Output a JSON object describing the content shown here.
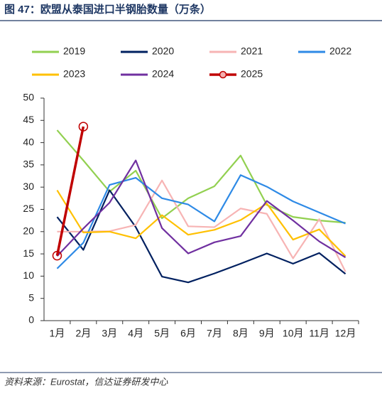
{
  "chart_data": {
    "type": "line",
    "title": "图 47：欧盟从泰国进口半钢胎数量（万条）",
    "source": "资料来源：Eurostat，信达证券研发中心",
    "categories": [
      "1月",
      "2月",
      "3月",
      "4月",
      "5月",
      "6月",
      "7月",
      "8月",
      "9月",
      "10月",
      "11月",
      "12月"
    ],
    "series": [
      {
        "name": "2019",
        "color": "#92d050",
        "values": [
          42.8,
          36,
          29,
          33.7,
          23,
          27.5,
          30.2,
          37.1,
          26,
          23.3,
          22.5,
          22
        ]
      },
      {
        "name": "2020",
        "color": "#002060",
        "values": [
          23.3,
          15.9,
          29.3,
          21,
          9.9,
          8.6,
          10.6,
          12.8,
          15.1,
          12.8,
          15.2,
          10.5
        ]
      },
      {
        "name": "2021",
        "color": "#f7b4b4",
        "values": [
          20,
          20,
          20.1,
          21.5,
          31.5,
          21.2,
          21,
          25.2,
          24,
          14,
          22.8,
          11
        ]
      },
      {
        "name": "2022",
        "color": "#2e8ae6",
        "values": [
          11.7,
          17.5,
          30.5,
          32.1,
          27.5,
          26.1,
          22.3,
          32.7,
          30.1,
          26.8,
          24.3,
          21.8
        ]
      },
      {
        "name": "2023",
        "color": "#ffc000",
        "values": [
          29.3,
          19.8,
          20,
          18.5,
          23.7,
          19.3,
          20.4,
          22.6,
          26.3,
          18.2,
          20.5,
          14.5
        ]
      },
      {
        "name": "2024",
        "color": "#7030a0",
        "values": [
          14.5,
          20.7,
          26.5,
          36,
          20.8,
          15.1,
          17.6,
          19,
          26.9,
          22.5,
          17.8,
          14.2
        ]
      },
      {
        "name": "2025",
        "color": "#c00000",
        "marker": "circle",
        "values": [
          14.6,
          43.6,
          null,
          null,
          null,
          null,
          null,
          null,
          null,
          null,
          null,
          null
        ]
      }
    ],
    "ylim": [
      0,
      50
    ],
    "yticks": [
      0,
      5,
      10,
      15,
      20,
      25,
      30,
      35,
      40,
      45,
      50
    ],
    "grid": false,
    "legend": "top"
  }
}
